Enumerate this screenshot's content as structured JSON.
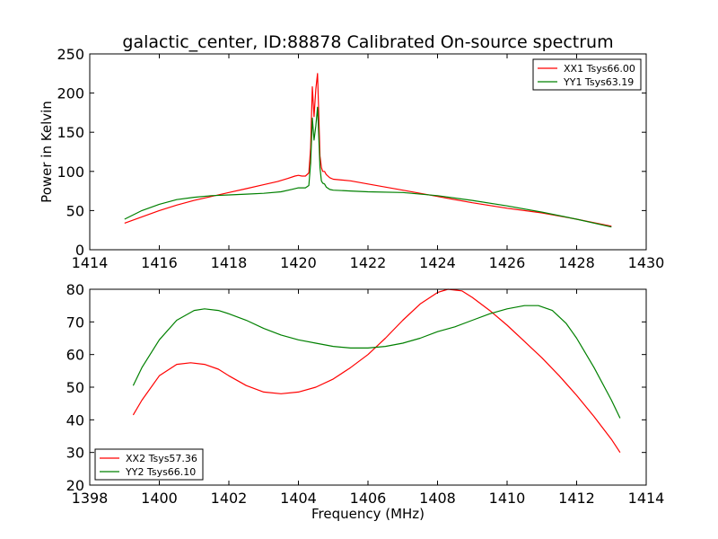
{
  "title": "galactic_center, ID:88878 Calibrated On-source spectrum",
  "chart_data": [
    {
      "type": "line",
      "xlabel": "",
      "ylabel": "Power in Kelvin",
      "xlim": [
        1414,
        1430
      ],
      "ylim": [
        0,
        250
      ],
      "xticks": [
        "1414",
        "1416",
        "1418",
        "1420",
        "1422",
        "1424",
        "1426",
        "1428",
        "1430"
      ],
      "yticks": [
        "0",
        "50",
        "100",
        "150",
        "200",
        "250"
      ],
      "legend": "top-right",
      "grid": false,
      "series": [
        {
          "name": "XX1 Tsys66.00",
          "color": "#ff0000",
          "x": [
            1415.0,
            1415.5,
            1416.0,
            1416.5,
            1417.0,
            1417.5,
            1418.0,
            1418.5,
            1419.0,
            1419.4,
            1419.7,
            1419.9,
            1420.0,
            1420.1,
            1420.2,
            1420.3,
            1420.35,
            1420.4,
            1420.45,
            1420.5,
            1420.55,
            1420.58,
            1420.62,
            1420.66,
            1420.7,
            1420.75,
            1420.8,
            1420.9,
            1421.0,
            1421.5,
            1422.0,
            1423.0,
            1424.0,
            1425.0,
            1426.0,
            1427.0,
            1428.0,
            1429.0
          ],
          "y": [
            34,
            42,
            50,
            57,
            63,
            68,
            73,
            78,
            83,
            87,
            91,
            94,
            95,
            94,
            94,
            98,
            130,
            208,
            170,
            205,
            225,
            180,
            120,
            105,
            100,
            100,
            96,
            92,
            90,
            88,
            84,
            76,
            68,
            60,
            53,
            47,
            39,
            30
          ]
        },
        {
          "name": "YY1 Tsys63.19",
          "color": "#008000",
          "x": [
            1415.0,
            1415.5,
            1416.0,
            1416.5,
            1417.0,
            1417.5,
            1418.0,
            1418.5,
            1419.0,
            1419.5,
            1419.8,
            1420.0,
            1420.2,
            1420.3,
            1420.35,
            1420.4,
            1420.45,
            1420.5,
            1420.55,
            1420.58,
            1420.62,
            1420.66,
            1420.7,
            1420.75,
            1420.8,
            1420.9,
            1421.0,
            1421.5,
            1422.0,
            1423.0,
            1424.0,
            1425.0,
            1426.0,
            1427.0,
            1428.0,
            1429.0
          ],
          "y": [
            39,
            50,
            58,
            64,
            67,
            69,
            70,
            71,
            72,
            74,
            77,
            79,
            79,
            82,
            110,
            168,
            140,
            158,
            182,
            150,
            105,
            88,
            85,
            84,
            80,
            77,
            76,
            75,
            74,
            73,
            69,
            63,
            56,
            48,
            39,
            29
          ]
        }
      ]
    },
    {
      "type": "line",
      "xlabel": "Frequency (MHz)",
      "ylabel": "",
      "xlim": [
        1398,
        1414
      ],
      "ylim": [
        20,
        80
      ],
      "xticks": [
        "1398",
        "1400",
        "1402",
        "1404",
        "1406",
        "1408",
        "1410",
        "1412",
        "1414"
      ],
      "yticks": [
        "20",
        "30",
        "40",
        "50",
        "60",
        "70",
        "80"
      ],
      "legend": "bottom-left",
      "grid": false,
      "series": [
        {
          "name": "XX2 Tsys57.36",
          "color": "#ff0000",
          "x": [
            1399.25,
            1399.5,
            1400.0,
            1400.5,
            1400.9,
            1401.3,
            1401.7,
            1402.0,
            1402.5,
            1403.0,
            1403.5,
            1404.0,
            1404.5,
            1405.0,
            1405.5,
            1406.0,
            1406.5,
            1407.0,
            1407.5,
            1408.0,
            1408.3,
            1408.7,
            1409.0,
            1409.5,
            1410.0,
            1410.5,
            1411.0,
            1411.5,
            1412.0,
            1412.5,
            1413.0,
            1413.25
          ],
          "y": [
            41.5,
            46,
            53.5,
            57,
            57.5,
            57,
            55.5,
            53.5,
            50.5,
            48.5,
            48,
            48.5,
            50,
            52.5,
            56,
            60,
            65,
            70.5,
            75.5,
            79,
            80,
            79.5,
            77.5,
            73.5,
            69,
            64,
            59,
            53.5,
            47.5,
            41,
            34,
            30
          ]
        },
        {
          "name": "YY2 Tsys66.10",
          "color": "#008000",
          "x": [
            1399.25,
            1399.5,
            1400.0,
            1400.5,
            1401.0,
            1401.3,
            1401.7,
            1402.0,
            1402.5,
            1403.0,
            1403.5,
            1404.0,
            1404.5,
            1405.0,
            1405.5,
            1406.0,
            1406.5,
            1407.0,
            1407.5,
            1408.0,
            1408.5,
            1409.0,
            1409.5,
            1410.0,
            1410.5,
            1410.9,
            1411.3,
            1411.7,
            1412.0,
            1412.5,
            1413.0,
            1413.25
          ],
          "y": [
            50.5,
            56,
            64.5,
            70.5,
            73.5,
            74,
            73.5,
            72.5,
            70.5,
            68,
            66,
            64.5,
            63.5,
            62.5,
            62,
            62,
            62.5,
            63.5,
            65,
            67,
            68.5,
            70.5,
            72.5,
            74,
            75,
            75,
            73.5,
            69.5,
            65,
            56,
            46,
            40.5
          ]
        }
      ]
    }
  ]
}
